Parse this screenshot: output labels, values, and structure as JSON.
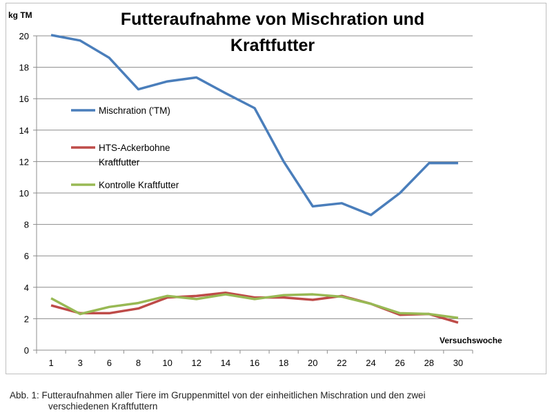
{
  "chart_data": {
    "type": "line",
    "title": "Futteraufnahme von Mischration und Kraftfutter",
    "title_lines": [
      "Futteraufnahme von Mischration und",
      "Kraftfutter"
    ],
    "ylabel": "kg TM",
    "xlabel": "Versuchswoche",
    "ylim": [
      0,
      20
    ],
    "yticks": [
      0,
      2,
      4,
      6,
      8,
      10,
      12,
      14,
      16,
      18,
      20
    ],
    "grid": true,
    "legend": "left-center",
    "categories": [
      "1",
      "3",
      "6",
      "8",
      "10",
      "12",
      "14",
      "16",
      "18",
      "20",
      "22",
      "24",
      "26",
      "28",
      "30"
    ],
    "series": [
      {
        "name": "Mischration ('TM)",
        "legend_lines": [
          "Mischration ('TM)"
        ],
        "color": "#4a7ebb",
        "values": [
          20.05,
          19.7,
          18.6,
          16.6,
          17.1,
          17.35,
          16.35,
          15.4,
          12.0,
          9.15,
          9.35,
          8.6,
          10.0,
          11.9,
          11.9
        ]
      },
      {
        "name": "HTS-Ackerbohne Kraftfutter",
        "legend_lines": [
          "HTS-Ackerbohne",
          "Kraftfutter"
        ],
        "color": "#be4b48",
        "values": [
          2.85,
          2.35,
          2.35,
          2.65,
          3.35,
          3.45,
          3.65,
          3.35,
          3.35,
          3.2,
          3.45,
          2.95,
          2.25,
          2.3,
          1.75
        ]
      },
      {
        "name": "Kontrolle Kraftfutter",
        "legend_lines": [
          "Kontrolle Kraftfutter"
        ],
        "color": "#98b954",
        "values": [
          3.3,
          2.3,
          2.75,
          3.0,
          3.45,
          3.25,
          3.55,
          3.25,
          3.5,
          3.55,
          3.4,
          2.95,
          2.35,
          2.3,
          2.05
        ]
      }
    ]
  },
  "caption": {
    "line1": "Abb. 1: Futteraufnahmen aller Tiere im Gruppenmittel von der einheitlichen Mischration und den zwei",
    "line2": "verschiedenen Kraftfuttern"
  }
}
